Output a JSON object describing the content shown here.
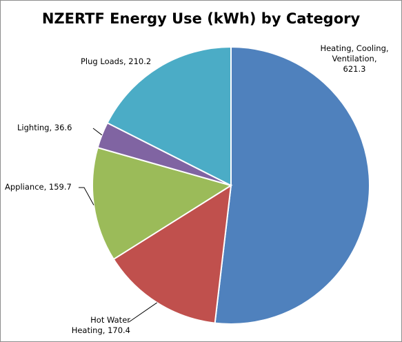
{
  "chart_data": {
    "type": "pie",
    "title": "NZERTF Energy Use (kWh) by Category",
    "slices": [
      {
        "label_lines": [
          "Heating, Cooling,",
          "Ventilation,",
          "621.3"
        ],
        "category": "Heating, Cooling, Ventilation",
        "value": 621.3,
        "color": "#4f81bd"
      },
      {
        "label_lines": [
          "Hot Water",
          "Heating, 170.4"
        ],
        "category": "Hot Water Heating",
        "value": 170.4,
        "color": "#c0504d"
      },
      {
        "label_lines": [
          "Appliance, 159.7"
        ],
        "category": "Appliance",
        "value": 159.7,
        "color": "#9bbb59"
      },
      {
        "label_lines": [
          "Lighting, 36.6"
        ],
        "category": "Lighting",
        "value": 36.6,
        "color": "#8064a2"
      },
      {
        "label_lines": [
          "Plug Loads, 210.2"
        ],
        "category": "Plug Loads",
        "value": 210.2,
        "color": "#4bacc6"
      }
    ],
    "legend": "none",
    "data_labels": "outside"
  }
}
